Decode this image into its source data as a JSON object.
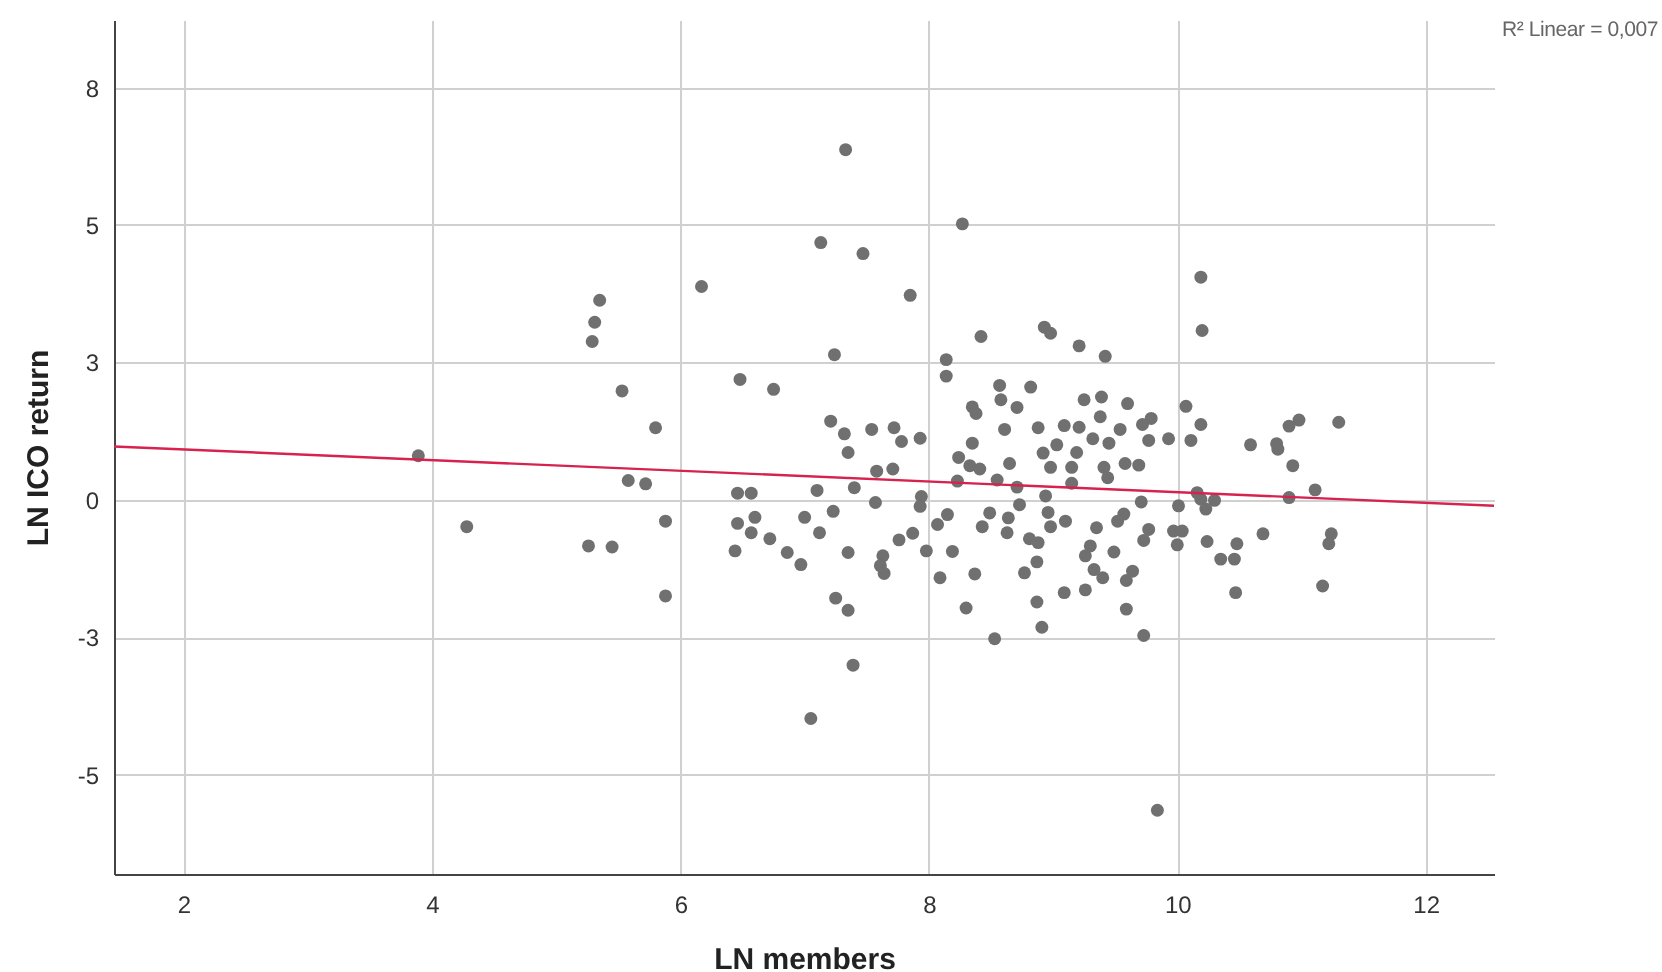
{
  "chart_data": {
    "type": "scatter",
    "xlabel": "LN members",
    "ylabel": "LN ICO return",
    "annotations": [
      "R² Linear = 0,007"
    ],
    "xlim": [
      1.44,
      12.55
    ],
    "ylim": [
      -6.81,
      8.73
    ],
    "xticks": [
      2,
      4,
      6,
      8,
      10,
      12
    ],
    "yticks": [
      {
        "value": -5,
        "label": "-5"
      },
      {
        "value": -2.5,
        "label": "-3"
      },
      {
        "value": 0,
        "label": "0"
      },
      {
        "value": 2.5,
        "label": "3"
      },
      {
        "value": 5,
        "label": "5"
      },
      {
        "value": 7.5,
        "label": "8"
      }
    ],
    "grid": true,
    "series": [
      {
        "marker": "circle",
        "color": "#707070",
        "x": [
          3.89,
          4.28,
          5.35,
          5.31,
          5.29,
          5.53,
          5.8,
          5.58,
          5.72,
          5.88,
          5.26,
          5.45,
          5.88,
          6.17,
          6.48,
          6.75,
          6.46,
          6.57,
          6.46,
          6.6,
          6.57,
          6.72,
          6.44,
          7.33,
          8.27,
          7.13,
          7.47,
          7.85,
          8.42,
          8.93,
          8.98,
          7.24,
          8.14,
          8.14,
          8.57,
          8.82,
          8.58,
          8.35,
          8.38,
          8.71,
          7.21,
          7.32,
          7.54,
          7.72,
          7.78,
          7.93,
          7.35,
          8.61,
          8.88,
          8.35,
          8.24,
          8.92,
          8.65,
          7.58,
          7.71,
          8.33,
          8.41,
          7.1,
          7.4,
          8.23,
          8.55,
          8.71,
          8.98,
          7.57,
          7.94,
          7.93,
          7.23,
          8.73,
          8.94,
          7.0,
          6.86,
          6.97,
          7.12,
          7.35,
          7.63,
          7.61,
          7.64,
          7.76,
          7.87,
          7.98,
          8.07,
          8.15,
          8.19,
          8.09,
          8.43,
          8.49,
          8.64,
          8.63,
          8.81,
          8.88,
          8.98,
          8.37,
          8.77,
          8.87,
          7.25,
          7.35,
          8.3,
          8.87,
          8.91,
          8.53,
          7.39,
          7.05,
          10.19,
          10.2,
          9.21,
          9.42,
          9.25,
          9.39,
          9.6,
          9.38,
          9.79,
          10.07,
          10.19,
          9.09,
          9.21,
          9.32,
          9.54,
          9.72,
          9.77,
          9.93,
          10.11,
          9.45,
          9.03,
          9.19,
          9.15,
          9.41,
          9.58,
          9.69,
          9.44,
          9.15,
          10.59,
          10.8,
          10.81,
          10.93,
          10.9,
          10.98,
          11.3,
          11.11,
          10.16,
          10.19,
          10.3,
          10.23,
          10.9,
          9.71,
          10.01,
          9.1,
          8.96,
          9.57,
          9.52,
          9.35,
          9.77,
          9.97,
          10.04,
          10.0,
          9.73,
          10.24,
          10.48,
          10.69,
          11.24,
          11.22,
          10.35,
          10.46,
          9.3,
          9.26,
          9.33,
          9.4,
          9.49,
          9.64,
          9.59,
          10.47,
          11.17,
          9.09,
          9.26,
          9.59,
          9.73,
          9.84
        ],
        "values": [
          0.8,
          -0.49,
          3.63,
          3.23,
          2.88,
          1.98,
          1.31,
          0.35,
          0.29,
          -0.39,
          -0.84,
          -0.86,
          -1.75,
          3.88,
          2.19,
          2.01,
          0.12,
          0.12,
          -0.43,
          -0.32,
          -0.6,
          -0.71,
          -0.93,
          6.37,
          5.02,
          4.68,
          4.48,
          3.72,
          2.97,
          3.14,
          3.03,
          2.64,
          2.55,
          2.25,
          2.08,
          2.05,
          1.82,
          1.69,
          1.57,
          1.68,
          1.43,
          1.2,
          1.28,
          1.31,
          1.06,
          1.12,
          0.86,
          1.28,
          1.31,
          1.03,
          0.77,
          0.85,
          0.66,
          0.52,
          0.56,
          0.62,
          0.56,
          0.17,
          0.22,
          0.34,
          0.36,
          0.23,
          0.59,
          -0.05,
          0.06,
          -0.12,
          -0.21,
          -0.09,
          0.07,
          -0.32,
          -0.96,
          -1.18,
          -0.6,
          -0.96,
          -1.02,
          -1.2,
          -1.34,
          -0.73,
          -0.61,
          -0.93,
          -0.45,
          -0.27,
          -0.94,
          -1.42,
          -0.49,
          -0.24,
          -0.33,
          -0.6,
          -0.71,
          -0.78,
          -0.49,
          -1.35,
          -1.33,
          -1.13,
          -1.79,
          -2.01,
          -1.97,
          -1.86,
          -2.32,
          -2.53,
          -3.01,
          -3.98,
          4.05,
          3.08,
          2.8,
          2.61,
          1.82,
          1.87,
          1.75,
          1.51,
          1.48,
          1.7,
          1.37,
          1.35,
          1.32,
          1.11,
          1.28,
          1.37,
          1.08,
          1.11,
          1.08,
          1.03,
          1.0,
          0.86,
          0.59,
          0.59,
          0.66,
          0.63,
          0.4,
          0.3,
          1.0,
          1.02,
          0.92,
          0.62,
          1.34,
          1.45,
          1.41,
          0.18,
          0.13,
          0.01,
          -0.01,
          -0.17,
          0.04,
          -0.04,
          -0.11,
          -0.39,
          -0.23,
          -0.26,
          -0.39,
          -0.51,
          -0.54,
          -0.57,
          -0.57,
          -0.82,
          -0.74,
          -0.76,
          -0.8,
          -0.62,
          -0.62,
          -0.8,
          -1.08,
          -1.08,
          -0.84,
          -1.02,
          -1.27,
          -1.42,
          -0.95,
          -1.3,
          -1.47,
          -1.69,
          -1.57,
          -1.69,
          -1.64,
          -1.99,
          -2.47,
          -5.65
        ]
      },
      {
        "type": "line",
        "color": "#d6224f",
        "x": [
          1.44,
          12.55
        ],
        "values": [
          0.97,
          -0.11
        ]
      }
    ]
  }
}
